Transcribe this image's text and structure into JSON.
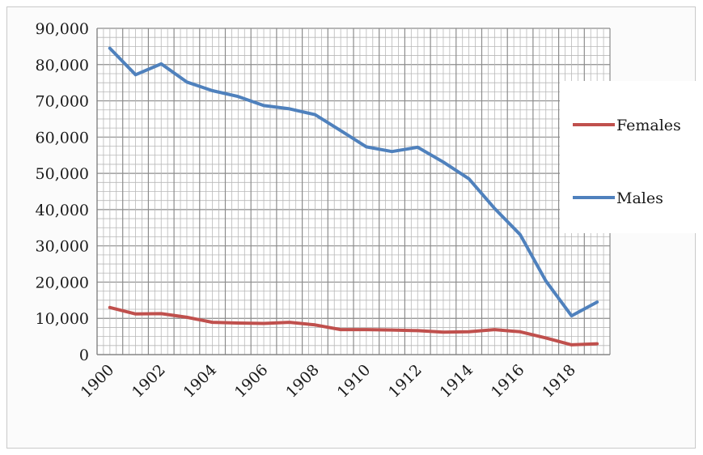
{
  "chart_data": {
    "type": "line",
    "title": "",
    "xlabel": "",
    "ylabel": "",
    "x": [
      1900,
      1901,
      1902,
      1903,
      1904,
      1905,
      1906,
      1907,
      1908,
      1909,
      1910,
      1911,
      1912,
      1913,
      1914,
      1915,
      1916,
      1917,
      1918,
      1919
    ],
    "x_tick_labels": [
      "1900",
      "1902",
      "1904",
      "1906",
      "1908",
      "1910",
      "1912",
      "1914",
      "1916",
      "1918"
    ],
    "y_tick_labels": [
      "0",
      "10,000",
      "20,000",
      "30,000",
      "40,000",
      "50,000",
      "60,000",
      "70,000",
      "80,000",
      "90,000"
    ],
    "ylim": [
      0,
      90000
    ],
    "grid": true,
    "legend_position": "right",
    "series": [
      {
        "name": "Females",
        "color": "#c0504d",
        "values": [
          13000,
          11200,
          11300,
          10300,
          8900,
          8700,
          8600,
          8900,
          8200,
          6900,
          6900,
          6800,
          6600,
          6200,
          6300,
          6900,
          6300,
          4600,
          2700,
          3000
        ]
      },
      {
        "name": "Males",
        "color": "#4f81bd",
        "values": [
          84500,
          77200,
          80200,
          75200,
          72800,
          71200,
          68700,
          67800,
          66200,
          61800,
          57300,
          56000,
          57200,
          53100,
          48500,
          40300,
          33100,
          20300,
          10700,
          14500
        ]
      }
    ]
  }
}
